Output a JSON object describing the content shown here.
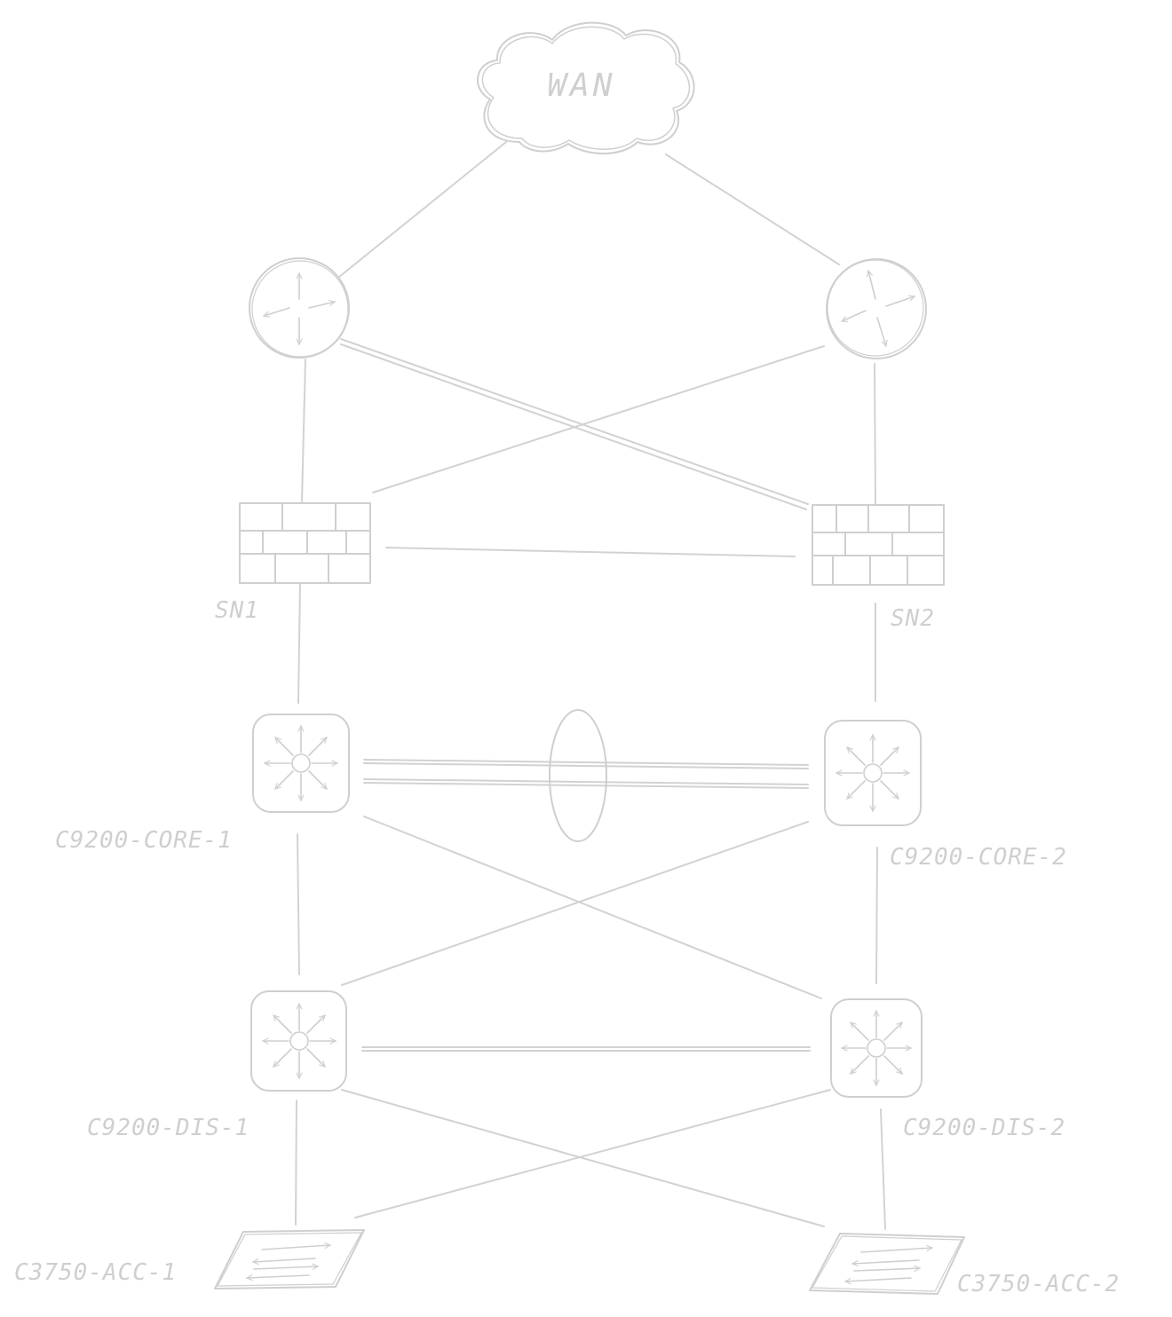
{
  "colors": {
    "stroke": "#cfcfcf",
    "label": "#cfcfcf",
    "background": "#ffffff"
  },
  "nodes": {
    "wan": {
      "label": "WAN",
      "icon": "cloud-icon"
    },
    "router_1": {
      "label": "",
      "icon": "router-icon"
    },
    "router_2": {
      "label": "",
      "icon": "router-icon"
    },
    "firewall_1": {
      "label": "SN1",
      "icon": "firewall-icon"
    },
    "firewall_2": {
      "label": "SN2",
      "icon": "firewall-icon"
    },
    "core_1": {
      "label": "C9200-CORE-1",
      "icon": "multilayer-switch-icon"
    },
    "core_2": {
      "label": "C9200-CORE-2",
      "icon": "multilayer-switch-icon"
    },
    "dist_1": {
      "label": "C9200-DIS-1",
      "icon": "multilayer-switch-icon"
    },
    "dist_2": {
      "label": "C9200-DIS-2",
      "icon": "multilayer-switch-icon"
    },
    "acc_1": {
      "label": "C3750-ACC-1",
      "icon": "layer2-switch-icon"
    },
    "acc_2": {
      "label": "C3750-ACC-2",
      "icon": "layer2-switch-icon"
    }
  },
  "links": [
    {
      "from": "wan",
      "to": "router_1"
    },
    {
      "from": "wan",
      "to": "router_2"
    },
    {
      "from": "router_1",
      "to": "firewall_1"
    },
    {
      "from": "router_1",
      "to": "firewall_2"
    },
    {
      "from": "router_2",
      "to": "firewall_1"
    },
    {
      "from": "router_2",
      "to": "firewall_2"
    },
    {
      "from": "firewall_1",
      "to": "firewall_2"
    },
    {
      "from": "firewall_1",
      "to": "core_1"
    },
    {
      "from": "firewall_2",
      "to": "core_2"
    },
    {
      "from": "core_1",
      "to": "core_2",
      "type": "etherchannel"
    },
    {
      "from": "core_1",
      "to": "dist_1"
    },
    {
      "from": "core_1",
      "to": "dist_2"
    },
    {
      "from": "core_2",
      "to": "dist_1"
    },
    {
      "from": "core_2",
      "to": "dist_2"
    },
    {
      "from": "dist_1",
      "to": "dist_2"
    },
    {
      "from": "dist_1",
      "to": "acc_1"
    },
    {
      "from": "dist_1",
      "to": "acc_2"
    },
    {
      "from": "dist_2",
      "to": "acc_1"
    },
    {
      "from": "dist_2",
      "to": "acc_2"
    }
  ]
}
